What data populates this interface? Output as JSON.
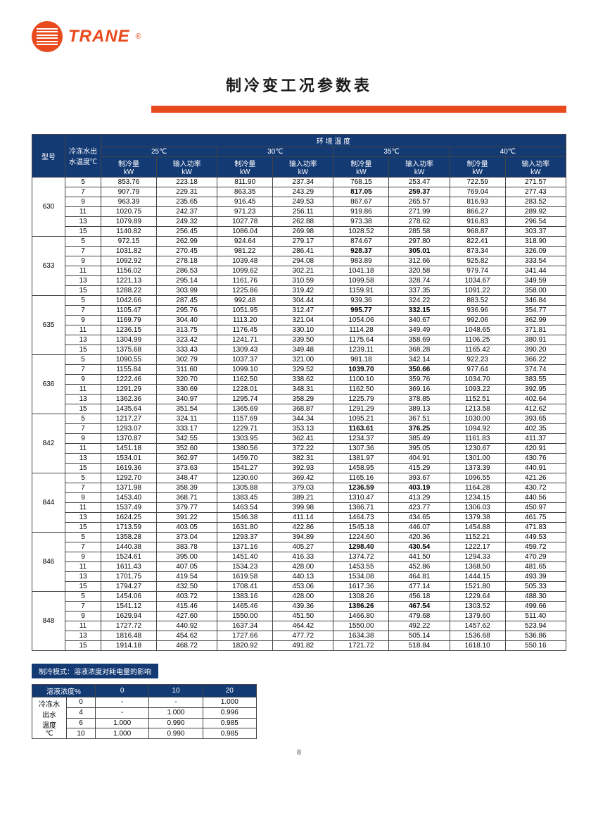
{
  "brand": "TRANE",
  "title": "制冷变工况参数表",
  "page_number": "8",
  "main_table": {
    "header": {
      "model": "型号",
      "chilled_water": "冷冻水出水温度℃",
      "ambient_group": "环 境 温 度",
      "ambient_temps": [
        "25℃",
        "30℃",
        "35℃",
        "40℃"
      ],
      "sub_cols": [
        "制冷量",
        "输入功率"
      ],
      "unit": "kW"
    },
    "models": [
      {
        "id": "630",
        "temps": [
          5,
          7,
          9,
          11,
          13,
          15
        ],
        "rows": [
          [
            "853.76",
            "223.18",
            "811.90",
            "237.34",
            "768.15",
            "253.47",
            "722.59",
            "271.57"
          ],
          [
            "907.79",
            "229.31",
            "863.35",
            "243.29",
            "817.05",
            "259.37",
            "769.04",
            "277.43"
          ],
          [
            "963.39",
            "235.65",
            "916.45",
            "249.53",
            "867.67",
            "265.57",
            "816.93",
            "283.52"
          ],
          [
            "1020.75",
            "242.37",
            "971.23",
            "256.11",
            "919.86",
            "271.99",
            "866.27",
            "289.92"
          ],
          [
            "1079.89",
            "249.32",
            "1027.78",
            "262.88",
            "973.38",
            "278.62",
            "916.83",
            "296.54"
          ],
          [
            "1140.82",
            "256.45",
            "1086.04",
            "269.98",
            "1028.52",
            "285.58",
            "968.87",
            "303.37"
          ]
        ],
        "bold_row": 1
      },
      {
        "id": "633",
        "temps": [
          5,
          7,
          9,
          11,
          13,
          15
        ],
        "rows": [
          [
            "972.15",
            "262.99",
            "924.64",
            "279.17",
            "874.67",
            "297.80",
            "822.41",
            "318.90"
          ],
          [
            "1031.82",
            "270.45",
            "981.22",
            "286.41",
            "928.37",
            "305.01",
            "873.34",
            "326.09"
          ],
          [
            "1092.92",
            "278.18",
            "1039.48",
            "294.08",
            "983.89",
            "312.66",
            "925.82",
            "333.54"
          ],
          [
            "1156.02",
            "286.53",
            "1099.62",
            "302.21",
            "1041.18",
            "320.58",
            "979.74",
            "341.44"
          ],
          [
            "1221.13",
            "295.14",
            "1161.76",
            "310.59",
            "1099.58",
            "328.74",
            "1034.67",
            "349.59"
          ],
          [
            "1288.22",
            "303.99",
            "1225.86",
            "319.42",
            "1159.91",
            "337.35",
            "1091.22",
            "358.00"
          ]
        ],
        "bold_row": 1
      },
      {
        "id": "635",
        "temps": [
          5,
          7,
          9,
          11,
          13,
          15
        ],
        "rows": [
          [
            "1042.66",
            "287.45",
            "992.48",
            "304.44",
            "939.36",
            "324.22",
            "883.52",
            "346.84"
          ],
          [
            "1105.47",
            "295.76",
            "1051.95",
            "312.47",
            "995.77",
            "332.15",
            "936.96",
            "354.77"
          ],
          [
            "1169.79",
            "304.40",
            "1113.20",
            "321.04",
            "1054.06",
            "340.67",
            "992.06",
            "362.99"
          ],
          [
            "1236.15",
            "313.75",
            "1176.45",
            "330.10",
            "1114.28",
            "349.49",
            "1048.65",
            "371.81"
          ],
          [
            "1304.99",
            "323.42",
            "1241.71",
            "339.50",
            "1175.64",
            "358.69",
            "1106.25",
            "380.91"
          ],
          [
            "1375.68",
            "333.43",
            "1309.43",
            "349.48",
            "1239.11",
            "368.28",
            "1165.42",
            "390.20"
          ]
        ],
        "bold_row": 1
      },
      {
        "id": "636",
        "temps": [
          5,
          7,
          9,
          11,
          13,
          15
        ],
        "rows": [
          [
            "1090.55",
            "302.79",
            "1037.37",
            "321.00",
            "981.18",
            "342.14",
            "922.23",
            "366.22"
          ],
          [
            "1155.84",
            "311.60",
            "1099.10",
            "329.52",
            "1039.70",
            "350.66",
            "977.64",
            "374.74"
          ],
          [
            "1222.46",
            "320.70",
            "1162.50",
            "338.62",
            "1100.10",
            "359.76",
            "1034.70",
            "383.55"
          ],
          [
            "1291.29",
            "330.69",
            "1228.01",
            "348.31",
            "1162.50",
            "369.16",
            "1093.22",
            "392.95"
          ],
          [
            "1362.36",
            "340.97",
            "1295.74",
            "358.29",
            "1225.79",
            "378.85",
            "1152.51",
            "402.64"
          ],
          [
            "1435.64",
            "351.54",
            "1365.69",
            "368.87",
            "1291.29",
            "389.13",
            "1213.58",
            "412.62"
          ]
        ],
        "bold_row": 1
      },
      {
        "id": "842",
        "temps": [
          5,
          7,
          9,
          11,
          13,
          15
        ],
        "rows": [
          [
            "1217.27",
            "324.11",
            "1157.69",
            "344.34",
            "1095.21",
            "367.51",
            "1030.00",
            "393.65"
          ],
          [
            "1293.07",
            "333.17",
            "1229.71",
            "353.13",
            "1163.61",
            "376.25",
            "1094.92",
            "402.35"
          ],
          [
            "1370.87",
            "342.55",
            "1303.95",
            "362.41",
            "1234.37",
            "385.49",
            "1161.83",
            "411.37"
          ],
          [
            "1451.18",
            "352.60",
            "1380.56",
            "372.22",
            "1307.36",
            "395.05",
            "1230.67",
            "420.91"
          ],
          [
            "1534.01",
            "362.97",
            "1459.70",
            "382.31",
            "1381.97",
            "404.91",
            "1301.00",
            "430.76"
          ],
          [
            "1619.36",
            "373.63",
            "1541.27",
            "392.93",
            "1458.95",
            "415.29",
            "1373.39",
            "440.91"
          ]
        ],
        "bold_row": 1
      },
      {
        "id": "844",
        "temps": [
          5,
          7,
          9,
          11,
          13,
          15
        ],
        "rows": [
          [
            "1292.70",
            "348.47",
            "1230.60",
            "369.42",
            "1165.16",
            "393.67",
            "1096.55",
            "421.26"
          ],
          [
            "1371.98",
            "358.39",
            "1305.88",
            "379.03",
            "1236.59",
            "403.19",
            "1164.28",
            "430.72"
          ],
          [
            "1453.40",
            "368.71",
            "1383.45",
            "389.21",
            "1310.47",
            "413.29",
            "1234.15",
            "440.56"
          ],
          [
            "1537.49",
            "379.77",
            "1463.54",
            "399.98",
            "1386.71",
            "423.77",
            "1306.03",
            "450.97"
          ],
          [
            "1624.25",
            "391.22",
            "1546.38",
            "411.14",
            "1464.73",
            "434.65",
            "1379.38",
            "461.75"
          ],
          [
            "1713.59",
            "403.05",
            "1631.80",
            "422.86",
            "1545.18",
            "446.07",
            "1454.88",
            "471.83"
          ]
        ],
        "bold_row": 1
      },
      {
        "id": "846",
        "temps": [
          5,
          7,
          9,
          11,
          13,
          15
        ],
        "rows": [
          [
            "1358.28",
            "373.04",
            "1293.37",
            "394.89",
            "1224.60",
            "420.36",
            "1152.21",
            "449.53"
          ],
          [
            "1440.38",
            "383.78",
            "1371.16",
            "405.27",
            "1298.40",
            "430.54",
            "1222.17",
            "459.72"
          ],
          [
            "1524.61",
            "395.00",
            "1451.40",
            "416.33",
            "1374.72",
            "441.50",
            "1294.33",
            "470.29"
          ],
          [
            "1611.43",
            "407.05",
            "1534.23",
            "428.00",
            "1453.55",
            "452.86",
            "1368.50",
            "481.65"
          ],
          [
            "1701.75",
            "419.54",
            "1619.58",
            "440.13",
            "1534.08",
            "464.81",
            "1444.15",
            "493.39"
          ],
          [
            "1794.27",
            "432.50",
            "1708.41",
            "453.06",
            "1617.36",
            "477.14",
            "1521.80",
            "505.33"
          ]
        ],
        "bold_row": 1
      },
      {
        "id": "848",
        "temps": [
          5,
          7,
          9,
          11,
          13,
          15
        ],
        "rows": [
          [
            "1454.06",
            "403.72",
            "1383.16",
            "428.00",
            "1308.26",
            "456.18",
            "1229.64",
            "488.30"
          ],
          [
            "1541.12",
            "415.46",
            "1465.46",
            "439.36",
            "1386.26",
            "467.54",
            "1303.52",
            "499.66"
          ],
          [
            "1629.94",
            "427.60",
            "1550.00",
            "451.50",
            "1466.80",
            "479.68",
            "1379.60",
            "511.40"
          ],
          [
            "1727.72",
            "440.92",
            "1637.34",
            "464.42",
            "1550.00",
            "492.22",
            "1457.62",
            "523.94"
          ],
          [
            "1816.48",
            "454.62",
            "1727.66",
            "477.72",
            "1634.38",
            "505.14",
            "1536.68",
            "536.86"
          ],
          [
            "1914.18",
            "468.72",
            "1820.92",
            "491.82",
            "1721.72",
            "518.84",
            "1618.10",
            "550.16"
          ]
        ],
        "bold_row": 1
      }
    ]
  },
  "sub_label": "制冷模式：溶液浓度对耗电量的影响",
  "sub_table": {
    "header": [
      "溶液浓度%",
      "0",
      "10",
      "20"
    ],
    "side_label": "冷冻水出水温度℃",
    "rows": [
      [
        "0",
        "-",
        "-",
        "1.000"
      ],
      [
        "4",
        "-",
        "1.000",
        "0.996"
      ],
      [
        "6",
        "1.000",
        "0.990",
        "0.985"
      ],
      [
        "10",
        "1.000",
        "0.990",
        "0.985"
      ]
    ]
  },
  "colors": {
    "header_bg": "#143a74",
    "accent": "#e8491d",
    "border": "#444444"
  }
}
